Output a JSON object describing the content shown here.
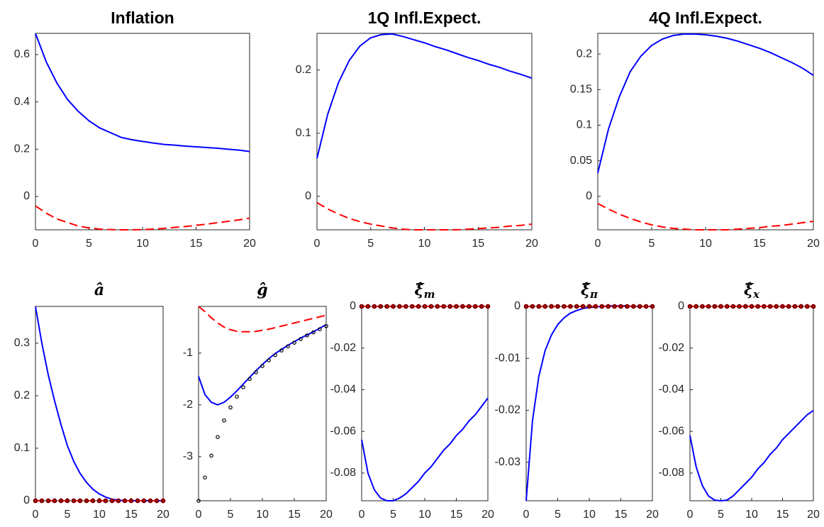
{
  "chart_data": [
    {
      "type": "line",
      "title": "Inflation",
      "x": [
        0,
        1,
        2,
        3,
        4,
        5,
        6,
        7,
        8,
        9,
        10,
        11,
        12,
        13,
        14,
        15,
        16,
        17,
        18,
        19,
        20
      ],
      "xlim": [
        0,
        20
      ],
      "xticks": [
        0,
        5,
        10,
        15,
        20
      ],
      "ylim": [
        -0.141,
        0.69
      ],
      "yticks": [
        0,
        0.2,
        0.4,
        0.6
      ],
      "series": [
        {
          "color": "#0000ff",
          "style": "solid",
          "values": [
            0.69,
            0.57,
            0.48,
            0.41,
            0.36,
            0.32,
            0.29,
            0.27,
            0.25,
            0.24,
            0.233,
            0.226,
            0.22,
            0.217,
            0.213,
            0.21,
            0.207,
            0.204,
            0.2,
            0.196,
            0.19
          ]
        },
        {
          "color": "#ff0000",
          "style": "dashed",
          "values": [
            -0.04,
            -0.07,
            -0.095,
            -0.11,
            -0.125,
            -0.133,
            -0.138,
            -0.14,
            -0.141,
            -0.141,
            -0.14,
            -0.138,
            -0.135,
            -0.131,
            -0.127,
            -0.122,
            -0.117,
            -0.111,
            -0.105,
            -0.099,
            -0.092
          ]
        }
      ]
    },
    {
      "type": "line",
      "title": "1Q Infl.Expect.",
      "x": [
        0,
        1,
        2,
        3,
        4,
        5,
        6,
        7,
        8,
        9,
        10,
        11,
        12,
        13,
        14,
        15,
        16,
        17,
        18,
        19,
        20
      ],
      "xlim": [
        0,
        20
      ],
      "xticks": [
        0,
        5,
        10,
        15,
        20
      ],
      "ylim": [
        -0.053,
        0.258
      ],
      "yticks": [
        0,
        0.1,
        0.2
      ],
      "series": [
        {
          "color": "#0000ff",
          "style": "solid",
          "values": [
            0.06,
            0.13,
            0.18,
            0.215,
            0.238,
            0.251,
            0.256,
            0.257,
            0.253,
            0.248,
            0.243,
            0.237,
            0.232,
            0.226,
            0.22,
            0.215,
            0.209,
            0.204,
            0.198,
            0.193,
            0.187
          ]
        },
        {
          "color": "#ff0000",
          "style": "dashed",
          "values": [
            -0.01,
            -0.02,
            -0.028,
            -0.035,
            -0.04,
            -0.044,
            -0.047,
            -0.05,
            -0.052,
            -0.053,
            -0.053,
            -0.053,
            -0.053,
            -0.053,
            -0.052,
            -0.051,
            -0.05,
            -0.049,
            -0.047,
            -0.046,
            -0.044
          ]
        }
      ]
    },
    {
      "type": "line",
      "title": "4Q Infl.Expect.",
      "x": [
        0,
        1,
        2,
        3,
        4,
        5,
        6,
        7,
        8,
        9,
        10,
        11,
        12,
        13,
        14,
        15,
        16,
        17,
        18,
        19,
        20
      ],
      "xlim": [
        0,
        20
      ],
      "xticks": [
        0,
        5,
        10,
        15,
        20
      ],
      "ylim": [
        -0.047,
        0.229
      ],
      "yticks": [
        0,
        0.05,
        0.1,
        0.15,
        0.2
      ],
      "series": [
        {
          "color": "#0000ff",
          "style": "solid",
          "values": [
            0.033,
            0.095,
            0.14,
            0.175,
            0.197,
            0.212,
            0.221,
            0.226,
            0.228,
            0.228,
            0.227,
            0.225,
            0.222,
            0.218,
            0.213,
            0.208,
            0.202,
            0.195,
            0.188,
            0.18,
            0.17
          ]
        },
        {
          "color": "#ff0000",
          "style": "dashed",
          "values": [
            -0.01,
            -0.018,
            -0.025,
            -0.031,
            -0.036,
            -0.04,
            -0.043,
            -0.045,
            -0.046,
            -0.047,
            -0.047,
            -0.047,
            -0.047,
            -0.046,
            -0.045,
            -0.044,
            -0.042,
            -0.041,
            -0.039,
            -0.037,
            -0.035
          ]
        }
      ]
    },
    {
      "type": "line",
      "title": "â",
      "x": [
        0,
        1,
        2,
        3,
        4,
        5,
        6,
        7,
        8,
        9,
        10,
        11,
        12,
        13,
        14,
        15,
        16,
        17,
        18,
        19,
        20
      ],
      "xlim": [
        0,
        20
      ],
      "xticks": [
        0,
        5,
        10,
        15,
        20
      ],
      "ylim": [
        0,
        0.37
      ],
      "yticks": [
        0,
        0.1,
        0.2,
        0.3
      ],
      "series": [
        {
          "color": "#0000ff",
          "style": "solid",
          "values": [
            0.37,
            0.3,
            0.24,
            0.19,
            0.145,
            0.105,
            0.075,
            0.052,
            0.035,
            0.022,
            0.013,
            0.007,
            0.003,
            0.001,
            0,
            0,
            0,
            0,
            0,
            0,
            0
          ]
        },
        {
          "color": "#ff0000",
          "style": "dashed",
          "marker": true,
          "values": [
            0,
            0,
            0,
            0,
            0,
            0,
            0,
            0,
            0,
            0,
            0,
            0,
            0,
            0,
            0,
            0,
            0,
            0,
            0,
            0,
            0
          ]
        },
        {
          "color": "#000000",
          "style": "markers",
          "values": [
            0,
            0,
            0,
            0,
            0,
            0,
            0,
            0,
            0,
            0,
            0,
            0,
            0,
            0,
            0,
            0,
            0,
            0,
            0,
            0,
            0
          ]
        }
      ]
    },
    {
      "type": "line",
      "title": "ĝ",
      "x": [
        0,
        1,
        2,
        3,
        4,
        5,
        6,
        7,
        8,
        9,
        10,
        11,
        12,
        13,
        14,
        15,
        16,
        17,
        18,
        19,
        20
      ],
      "xlim": [
        0,
        20
      ],
      "xticks": [
        0,
        5,
        10,
        15,
        20
      ],
      "ylim": [
        -3.85,
        -0.1
      ],
      "yticks": [
        -3,
        -2,
        -1
      ],
      "series": [
        {
          "color": "#0000ff",
          "style": "solid",
          "values": [
            -1.45,
            -1.8,
            -1.95,
            -2.0,
            -1.95,
            -1.85,
            -1.73,
            -1.6,
            -1.47,
            -1.34,
            -1.22,
            -1.11,
            -1.01,
            -0.93,
            -0.85,
            -0.78,
            -0.71,
            -0.65,
            -0.59,
            -0.52,
            -0.45
          ]
        },
        {
          "color": "#ff0000",
          "style": "dashed",
          "values": [
            -0.1,
            -0.2,
            -0.32,
            -0.42,
            -0.5,
            -0.55,
            -0.58,
            -0.59,
            -0.59,
            -0.58,
            -0.56,
            -0.54,
            -0.51,
            -0.48,
            -0.45,
            -0.42,
            -0.39,
            -0.36,
            -0.33,
            -0.3,
            -0.27
          ]
        },
        {
          "color": "#000000",
          "style": "markers",
          "values": [
            -3.85,
            -3.4,
            -2.98,
            -2.62,
            -2.3,
            -2.05,
            -1.84,
            -1.66,
            -1.5,
            -1.37,
            -1.25,
            -1.14,
            -1.04,
            -0.95,
            -0.87,
            -0.8,
            -0.73,
            -0.66,
            -0.6,
            -0.54,
            -0.48
          ]
        }
      ]
    },
    {
      "type": "line",
      "title": "ξ̂",
      "title_sub": "m",
      "x": [
        0,
        1,
        2,
        3,
        4,
        5,
        6,
        7,
        8,
        9,
        10,
        11,
        12,
        13,
        14,
        15,
        16,
        17,
        18,
        19,
        20
      ],
      "xlim": [
        0,
        20
      ],
      "xticks": [
        0,
        5,
        10,
        15,
        20
      ],
      "ylim": [
        -0.0933,
        0
      ],
      "yticks": [
        -0.08,
        -0.06,
        -0.04,
        -0.02,
        0
      ],
      "series": [
        {
          "color": "#0000ff",
          "style": "solid",
          "values": [
            -0.064,
            -0.08,
            -0.088,
            -0.092,
            -0.0933,
            -0.0933,
            -0.092,
            -0.09,
            -0.087,
            -0.084,
            -0.08,
            -0.077,
            -0.073,
            -0.069,
            -0.066,
            -0.062,
            -0.059,
            -0.055,
            -0.052,
            -0.048,
            -0.044
          ]
        },
        {
          "color": "#ff0000",
          "style": "dashed",
          "marker": true,
          "values": [
            0,
            0,
            0,
            0,
            0,
            0,
            0,
            0,
            0,
            0,
            0,
            0,
            0,
            0,
            0,
            0,
            0,
            0,
            0,
            0,
            0
          ]
        },
        {
          "color": "#000000",
          "style": "markers",
          "values": [
            0,
            0,
            0,
            0,
            0,
            0,
            0,
            0,
            0,
            0,
            0,
            0,
            0,
            0,
            0,
            0,
            0,
            0,
            0,
            0,
            0
          ]
        }
      ]
    },
    {
      "type": "line",
      "title": "ξ̂",
      "title_sub": "π",
      "x": [
        0,
        1,
        2,
        3,
        4,
        5,
        6,
        7,
        8,
        9,
        10,
        11,
        12,
        13,
        14,
        15,
        16,
        17,
        18,
        19,
        20
      ],
      "xlim": [
        0,
        20
      ],
      "xticks": [
        0,
        5,
        10,
        15,
        20
      ],
      "ylim": [
        -0.0374,
        0
      ],
      "yticks": [
        -0.03,
        -0.02,
        -0.01,
        0
      ],
      "series": [
        {
          "color": "#0000ff",
          "style": "solid",
          "values": [
            -0.0374,
            -0.022,
            -0.0135,
            -0.0085,
            -0.0055,
            -0.0035,
            -0.0022,
            -0.0013,
            -0.0008,
            -0.0004,
            -0.0002,
            -0.0001,
            0,
            0.0001,
            0.0001,
            0.0001,
            0.0001,
            0,
            0,
            0,
            0
          ]
        },
        {
          "color": "#ff0000",
          "style": "dashed",
          "marker": true,
          "values": [
            0,
            0,
            0,
            0,
            0,
            0,
            0,
            0,
            0,
            0,
            0,
            0,
            0,
            0,
            0,
            0,
            0,
            0,
            0,
            0,
            0
          ]
        },
        {
          "color": "#000000",
          "style": "markers",
          "values": [
            0,
            0,
            0,
            0,
            0,
            0,
            0,
            0,
            0,
            0,
            0,
            0,
            0,
            0,
            0,
            0,
            0,
            0,
            0,
            0,
            0
          ]
        }
      ]
    },
    {
      "type": "line",
      "title": "ξ̂",
      "title_sub": "x",
      "x": [
        0,
        1,
        2,
        3,
        4,
        5,
        6,
        7,
        8,
        9,
        10,
        11,
        12,
        13,
        14,
        15,
        16,
        17,
        18,
        19,
        20
      ],
      "xlim": [
        0,
        20
      ],
      "xticks": [
        0,
        5,
        10,
        15,
        20
      ],
      "ylim": [
        -0.0933,
        0
      ],
      "yticks": [
        -0.08,
        -0.06,
        -0.04,
        -0.02,
        0
      ],
      "series": [
        {
          "color": "#0000ff",
          "style": "solid",
          "values": [
            -0.062,
            -0.077,
            -0.086,
            -0.091,
            -0.093,
            -0.0933,
            -0.093,
            -0.091,
            -0.088,
            -0.085,
            -0.082,
            -0.078,
            -0.075,
            -0.071,
            -0.068,
            -0.064,
            -0.061,
            -0.058,
            -0.055,
            -0.052,
            -0.05
          ]
        },
        {
          "color": "#ff0000",
          "style": "dashed",
          "marker": true,
          "values": [
            0,
            0,
            0,
            0,
            0,
            0,
            0,
            0,
            0,
            0,
            0,
            0,
            0,
            0,
            0,
            0,
            0,
            0,
            0,
            0,
            0
          ]
        },
        {
          "color": "#000000",
          "style": "markers",
          "values": [
            0,
            0,
            0,
            0,
            0,
            0,
            0,
            0,
            0,
            0,
            0,
            0,
            0,
            0,
            0,
            0,
            0,
            0,
            0,
            0,
            0
          ]
        }
      ]
    }
  ]
}
